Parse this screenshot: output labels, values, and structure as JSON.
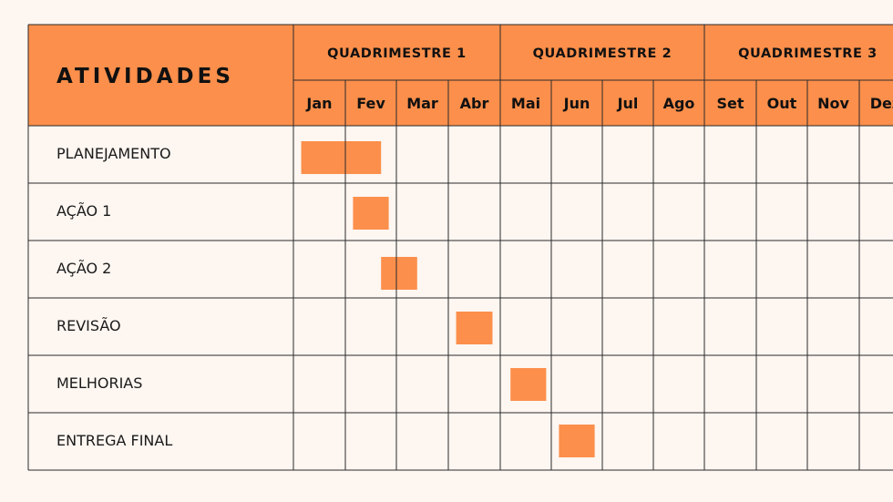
{
  "chart_data": {
    "type": "gantt",
    "header_label": "ATIVIDADES",
    "quarters": [
      {
        "label": "QUADRIMESTRE 1",
        "months": 4
      },
      {
        "label": "QUADRIMESTRE 2",
        "months": 4
      },
      {
        "label": "QUADRIMESTRE 3",
        "months": 4
      }
    ],
    "months": [
      "Jan",
      "Fev",
      "Mar",
      "Abr",
      "Mai",
      "Jun",
      "Jul",
      "Ago",
      "Set",
      "Out",
      "Nov",
      "Dez"
    ],
    "tasks": [
      {
        "name": "PLANEJAMENTO",
        "start": 0.15,
        "end": 1.7
      },
      {
        "name": "AÇÃO 1",
        "start": 1.15,
        "end": 1.85
      },
      {
        "name": "AÇÃO 2",
        "start": 1.7,
        "end": 2.4
      },
      {
        "name": "REVISÃO",
        "start": 3.15,
        "end": 3.85
      },
      {
        "name": "MELHORIAS",
        "start": 4.2,
        "end": 4.9
      },
      {
        "name": "ENTREGA FINAL",
        "start": 5.15,
        "end": 5.85
      }
    ],
    "colors": {
      "accent": "#fc8f4b",
      "background": "#fdf6f1",
      "grid": "#2b2b2b"
    }
  }
}
